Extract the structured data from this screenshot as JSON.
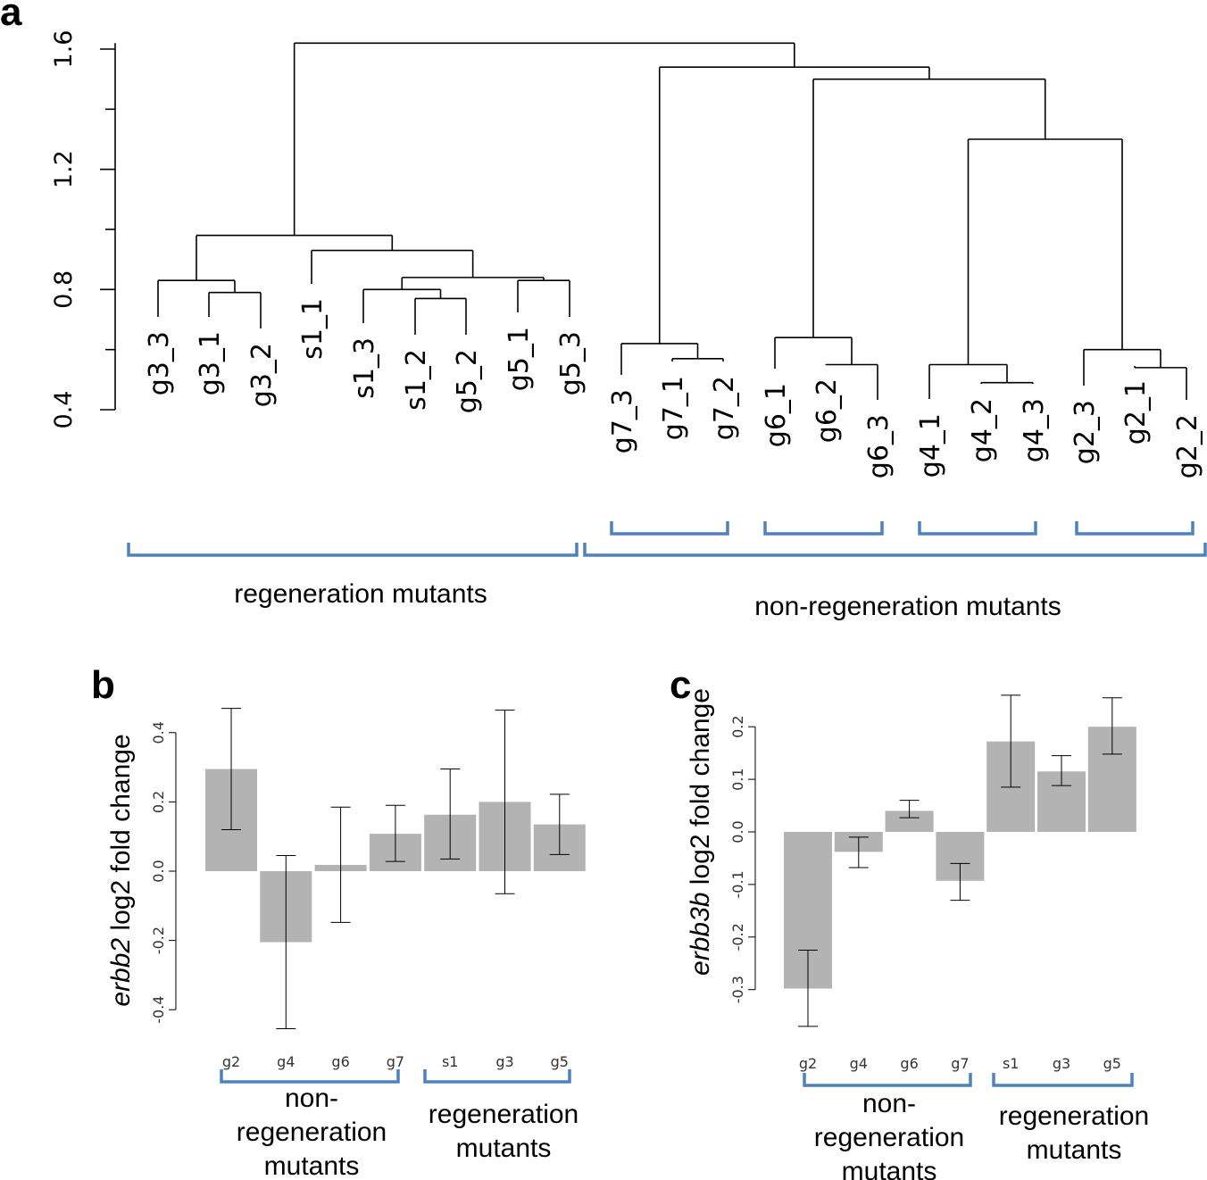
{
  "panels": {
    "a": "a",
    "b": "b",
    "c": "c"
  },
  "chart_data": [
    {
      "type": "dendrogram",
      "panel": "a",
      "ylim": [
        0.4,
        1.65
      ],
      "yticks": [
        "0.4",
        "0.8",
        "1.2",
        "1.6"
      ],
      "yticks_values": [
        0.4,
        0.8,
        1.2,
        1.6
      ],
      "leaves": [
        "g3_3",
        "g3_1",
        "g3_2",
        "s1_1",
        "s1_3",
        "s1_2",
        "g5_2",
        "g5_1",
        "g5_3",
        "g7_3",
        "g7_1",
        "g7_2",
        "g6_1",
        "g6_2",
        "g6_3",
        "g4_1",
        "g4_2",
        "g4_3",
        "g2_3",
        "g2_1",
        "g2_2"
      ],
      "merges": [
        {
          "left": "g3_1",
          "right": "g3_2",
          "height": 0.79
        },
        {
          "left": "g3_3",
          "right": "(g3_1,g3_2)",
          "height": 0.83
        },
        {
          "left": "s1_2",
          "right": "g5_2",
          "height": 0.77
        },
        {
          "left": "s1_3",
          "right": "(s1_2,g5_2)",
          "height": 0.8
        },
        {
          "left": "g5_1",
          "right": "g5_3",
          "height": 0.83
        },
        {
          "left": "(s1_3,s1_2,g5_2)",
          "right": "(g5_1,g5_3)",
          "height": 0.84
        },
        {
          "left": "s1_1",
          "right": "(s1_3,s1_2,g5_2,g5_1,g5_3)",
          "height": 0.93
        },
        {
          "left": "(g3)",
          "right": "(s1,g5)",
          "height": 0.98
        },
        {
          "left": "g7_1",
          "right": "g7_2",
          "height": 0.57
        },
        {
          "left": "g7_3",
          "right": "(g7_1,g7_2)",
          "height": 0.62
        },
        {
          "left": "g6_2",
          "right": "g6_3",
          "height": 0.55
        },
        {
          "left": "g6_1",
          "right": "(g6_2,g6_3)",
          "height": 0.64
        },
        {
          "left": "g4_2",
          "right": "g4_3",
          "height": 0.49
        },
        {
          "left": "g4_1",
          "right": "(g4_2,g4_3)",
          "height": 0.55
        },
        {
          "left": "g2_1",
          "right": "g2_2",
          "height": 0.54
        },
        {
          "left": "g2_3",
          "right": "(g2_1,g2_2)",
          "height": 0.6
        },
        {
          "left": "(g4)",
          "right": "(g2)",
          "height": 1.3
        },
        {
          "left": "(g6)",
          "right": "(g4,g2)",
          "height": 1.5
        },
        {
          "left": "(g7)",
          "right": "(g6,g4,g2)",
          "height": 1.54
        },
        {
          "left": "(regeneration)",
          "right": "(non-regeneration)",
          "height": 1.62
        }
      ],
      "groups": [
        "regeneration mutants",
        "non-regeneration mutants"
      ]
    },
    {
      "type": "bar",
      "panel": "b",
      "ylabel_italic": "erbb2",
      "ylabel_rest": " log2 fold change",
      "ylim": [
        -0.47,
        0.48
      ],
      "yticks": [
        "-0.4",
        "-0.2",
        "0.0",
        "0.2",
        "0.4"
      ],
      "yticks_values": [
        -0.4,
        -0.2,
        0.0,
        0.2,
        0.4
      ],
      "categories": [
        "g2",
        "g4",
        "g6",
        "g7",
        "s1",
        "g3",
        "g5"
      ],
      "values": [
        0.295,
        -0.205,
        0.018,
        0.108,
        0.163,
        0.2,
        0.135
      ],
      "err_low": [
        0.12,
        -0.455,
        -0.148,
        0.028,
        0.035,
        -0.065,
        0.048
      ],
      "err_high": [
        0.47,
        0.045,
        0.185,
        0.19,
        0.295,
        0.465,
        0.222
      ],
      "groups": [
        "non-\nregeneration\nmutants",
        "regeneration\nmutants"
      ]
    },
    {
      "type": "bar",
      "panel": "c",
      "ylabel_italic": "erbb3b",
      "ylabel_rest": " log2 fold change",
      "ylim": [
        -0.34,
        0.26
      ],
      "yticks": [
        "-0.3",
        "-0.2",
        "-0.1",
        "0.0",
        "0.1",
        "0.2"
      ],
      "yticks_values": [
        -0.3,
        -0.2,
        -0.1,
        0.0,
        0.1,
        0.2
      ],
      "categories": [
        "g2",
        "g4",
        "g6",
        "g7",
        "s1",
        "g3",
        "g5"
      ],
      "values": [
        -0.298,
        -0.038,
        0.04,
        -0.093,
        0.172,
        0.115,
        0.2
      ],
      "err_low": [
        -0.37,
        -0.068,
        0.027,
        -0.13,
        0.085,
        0.088,
        0.148
      ],
      "err_high": [
        -0.225,
        -0.01,
        0.06,
        -0.06,
        0.26,
        0.145,
        0.255
      ],
      "groups": [
        "non-\nregeneration\nmutants",
        "regeneration\nmutants"
      ]
    }
  ],
  "colors": {
    "bar": "#b3b3b3",
    "brace": "#4f81bd",
    "line": "#000000"
  }
}
